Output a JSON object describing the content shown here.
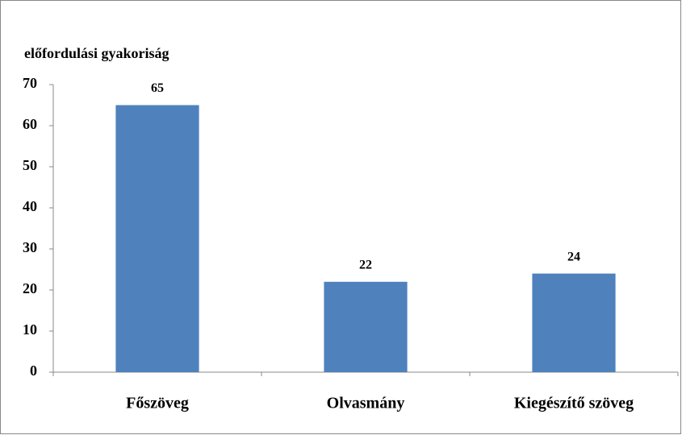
{
  "chart_data": {
    "type": "bar",
    "y_label": "előfordulási gyakoriság",
    "categories": [
      "Főszöveg",
      "Olvasmány",
      "Kiegészítő szöveg"
    ],
    "values": [
      65,
      22,
      24
    ],
    "color": "#4f81bd",
    "ylim": [
      0,
      70
    ],
    "yticks": [
      0,
      10,
      20,
      30,
      40,
      50,
      60,
      70
    ],
    "grid": false
  }
}
